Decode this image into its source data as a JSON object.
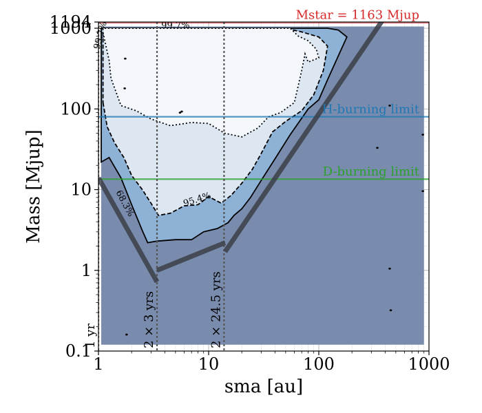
{
  "chart_data": {
    "type": "contour",
    "title": "",
    "xlabel": "sma [au]",
    "ylabel": "Mass [Mjup]",
    "xscale": "log",
    "yscale": "log",
    "xlim": [
      1,
      1000
    ],
    "ylim": [
      0.1,
      1194
    ],
    "x_ticks": [
      {
        "value": 1,
        "label": "1"
      },
      {
        "value": 10,
        "label": "10"
      },
      {
        "value": 100,
        "label": "100"
      },
      {
        "value": 1000,
        "label": "1000"
      }
    ],
    "y_ticks": [
      {
        "value": 0.1,
        "label": "0.1"
      },
      {
        "value": 1,
        "label": "1"
      },
      {
        "value": 10,
        "label": "10"
      },
      {
        "value": 100,
        "label": "100"
      },
      {
        "value": 1000,
        "label": "1000"
      },
      {
        "value": 1194,
        "label": "1194"
      }
    ],
    "star_mass_line": {
      "value": 1163,
      "label": "Mstar = 1163 Mjup",
      "color": "#d62728"
    },
    "h_burning": {
      "value": 80,
      "label": "H-burning limit",
      "color": "#1f77b4"
    },
    "d_burning": {
      "value": 13.5,
      "label": "D-burning limit",
      "color": "#2ca02c"
    },
    "period_lines": [
      {
        "sma": 1.0,
        "label": "1 yr"
      },
      {
        "sma": 3.4,
        "label": "2 × 3 yrs"
      },
      {
        "sma": 13.8,
        "label": "2 × 24.5 yrs"
      }
    ],
    "contour_labels": [
      {
        "text": "99.7%",
        "x": 1.1,
        "y": 800
      },
      {
        "text": "99.7%",
        "x": 5.0,
        "y": 1000
      },
      {
        "text": "95.4%",
        "x": 8.0,
        "y": 7.0
      },
      {
        "text": "68.3%",
        "x": 1.65,
        "y": 6.5
      }
    ],
    "contours": [
      {
        "level": "filled",
        "fill": "#7a8cad",
        "points": [
          [
            1.06,
            0.12
          ],
          [
            900,
            0.12
          ],
          [
            900,
            1050
          ],
          [
            1.06,
            1050
          ]
        ]
      },
      {
        "level": "68.3%",
        "fill": "#8eb2d6",
        "style": "solid",
        "points": [
          [
            1.06,
            22
          ],
          [
            1.25,
            25
          ],
          [
            1.6,
            14
          ],
          [
            2,
            6.5
          ],
          [
            2.5,
            3.1
          ],
          [
            2.8,
            2.2
          ],
          [
            3.4,
            2.3
          ],
          [
            5,
            2.4
          ],
          [
            7,
            2.4
          ],
          [
            9,
            3.0
          ],
          [
            12,
            3.3
          ],
          [
            15,
            3.9
          ],
          [
            17,
            4.8
          ],
          [
            20,
            5.8
          ],
          [
            24,
            8
          ],
          [
            30,
            13
          ],
          [
            40,
            24
          ],
          [
            55,
            48
          ],
          [
            80,
            100
          ],
          [
            100,
            130
          ],
          [
            120,
            230
          ],
          [
            160,
            550
          ],
          [
            180,
            780
          ],
          [
            150,
            950
          ],
          [
            120,
            1000
          ],
          [
            1.06,
            1000
          ]
        ]
      },
      {
        "level": "95.4%",
        "fill": "#dce7f2",
        "style": "dashed",
        "points": [
          [
            1.1,
            120
          ],
          [
            1.2,
            60
          ],
          [
            1.4,
            38
          ],
          [
            1.7,
            25
          ],
          [
            2,
            15
          ],
          [
            2.5,
            10
          ],
          [
            3,
            6.8
          ],
          [
            3.5,
            4.8
          ],
          [
            4.5,
            5.1
          ],
          [
            6,
            6.3
          ],
          [
            8,
            6.5
          ],
          [
            10,
            8.2
          ],
          [
            13,
            6.8
          ],
          [
            16,
            8.5
          ],
          [
            20,
            12
          ],
          [
            25,
            18
          ],
          [
            30,
            28
          ],
          [
            38,
            52
          ],
          [
            50,
            70
          ],
          [
            70,
            95
          ],
          [
            90,
            150
          ],
          [
            110,
            300
          ],
          [
            120,
            600
          ],
          [
            100,
            780
          ],
          [
            70,
            900
          ],
          [
            50,
            1000
          ],
          [
            1.1,
            1000
          ]
        ]
      },
      {
        "level": "99.7%",
        "fill": "#f4f7fb",
        "style": "dotted",
        "points": [
          [
            1.1,
            880
          ],
          [
            1.25,
            400
          ],
          [
            1.3,
            240
          ],
          [
            1.6,
            110
          ],
          [
            2.2,
            95
          ],
          [
            3,
            75
          ],
          [
            4.5,
            62
          ],
          [
            7,
            68
          ],
          [
            10,
            66
          ],
          [
            14,
            50
          ],
          [
            20,
            45
          ],
          [
            28,
            58
          ],
          [
            35,
            80
          ],
          [
            45,
            90
          ],
          [
            60,
            120
          ],
          [
            70,
            300
          ],
          [
            75,
            480
          ],
          [
            80,
            380
          ],
          [
            100,
            430
          ],
          [
            95,
            550
          ],
          [
            80,
            700
          ],
          [
            65,
            800
          ],
          [
            55,
            1000
          ],
          [
            1.1,
            1000
          ]
        ]
      }
    ],
    "gray_segments": [
      {
        "points": [
          [
            1,
            14
          ],
          [
            3.4,
            0.72
          ]
        ]
      },
      {
        "points": [
          [
            3.4,
            1.0
          ],
          [
            14.1,
            2.2
          ]
        ]
      },
      {
        "points": [
          [
            14.1,
            1.7
          ],
          [
            400,
            1400
          ]
        ]
      }
    ]
  }
}
